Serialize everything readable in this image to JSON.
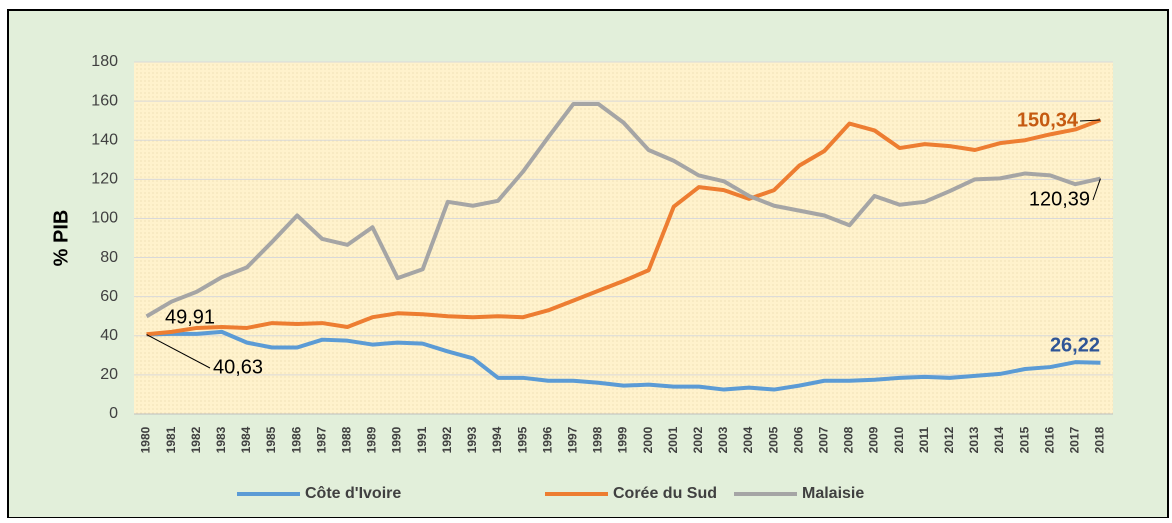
{
  "chart_data": {
    "type": "line",
    "y_label": "% PIB",
    "categories": [
      "1980",
      "1981",
      "1982",
      "1983",
      "1984",
      "1985",
      "1986",
      "1987",
      "1988",
      "1989",
      "1990",
      "1991",
      "1992",
      "1993",
      "1994",
      "1995",
      "1996",
      "1997",
      "1998",
      "1999",
      "2000",
      "2001",
      "2002",
      "2003",
      "2004",
      "2005",
      "2006",
      "2007",
      "2008",
      "2009",
      "2010",
      "2011",
      "2012",
      "2013",
      "2014",
      "2015",
      "2016",
      "2017",
      "2018"
    ],
    "ylim": [
      0,
      180
    ],
    "yticks": [
      0,
      20,
      40,
      60,
      80,
      100,
      120,
      140,
      160,
      180
    ],
    "grid": true,
    "legend": "bottom",
    "series": [
      {
        "name": "Côte d'Ivoire",
        "color": "#5b9bd5",
        "values": [
          40.63,
          41,
          41,
          42,
          36.5,
          34,
          34,
          38,
          37.5,
          35.5,
          36.5,
          36,
          32,
          28.5,
          18.5,
          18.5,
          17,
          17,
          16,
          14.5,
          15,
          14,
          14,
          12.5,
          13.5,
          12.5,
          14.5,
          17,
          17,
          17.5,
          18.5,
          19,
          18.5,
          19.5,
          20.5,
          23,
          24,
          26.5,
          26.22
        ],
        "value_labels": [
          "40,63",
          null,
          null,
          null,
          null,
          null,
          null,
          null,
          null,
          null,
          null,
          null,
          null,
          null,
          null,
          null,
          null,
          null,
          null,
          null,
          null,
          null,
          null,
          null,
          null,
          null,
          null,
          null,
          null,
          null,
          null,
          null,
          null,
          null,
          null,
          null,
          null,
          null,
          "26,22"
        ]
      },
      {
        "name": "Corée du Sud",
        "color": "#ed7d31",
        "values": [
          40.8,
          42,
          44,
          44.5,
          44,
          46.5,
          46,
          46.5,
          44.5,
          49.5,
          51.5,
          51,
          50,
          49.5,
          50,
          49.5,
          53,
          58,
          63,
          68,
          73.5,
          106,
          116,
          114.5,
          110,
          114.5,
          127,
          134.5,
          148.5,
          145,
          136,
          138,
          137,
          135,
          138.5,
          140,
          143,
          145.5,
          150.34
        ],
        "value_labels": [
          null,
          null,
          null,
          null,
          null,
          null,
          null,
          null,
          null,
          null,
          null,
          null,
          null,
          null,
          null,
          null,
          null,
          null,
          null,
          null,
          null,
          null,
          null,
          null,
          null,
          null,
          null,
          null,
          null,
          null,
          null,
          null,
          null,
          null,
          null,
          null,
          null,
          null,
          "150,34"
        ]
      },
      {
        "name": "Malaisie",
        "color": "#a5a5a5",
        "values": [
          49.91,
          57.5,
          62.5,
          70,
          75,
          88,
          101.5,
          89.5,
          86.5,
          95.5,
          69.5,
          74,
          108.5,
          106.5,
          109,
          124,
          141.5,
          158.5,
          158.5,
          149,
          135,
          129.5,
          122,
          119,
          111.5,
          106.5,
          104,
          101.5,
          96.5,
          111.5,
          107,
          108.5,
          114,
          120,
          120.5,
          123,
          122,
          117.5,
          120.39
        ],
        "value_labels": [
          "49,91",
          null,
          null,
          null,
          null,
          null,
          null,
          null,
          null,
          null,
          null,
          null,
          null,
          null,
          null,
          null,
          null,
          null,
          null,
          null,
          null,
          null,
          null,
          null,
          null,
          null,
          null,
          null,
          null,
          null,
          null,
          null,
          null,
          null,
          null,
          null,
          null,
          null,
          "120,39"
        ]
      }
    ]
  }
}
